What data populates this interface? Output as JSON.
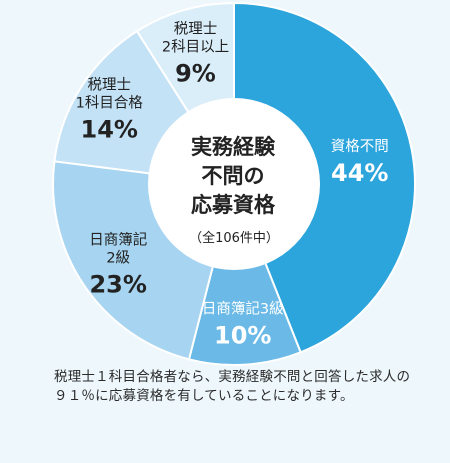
{
  "chart_data": {
    "type": "pie",
    "variant": "donut",
    "title": "実務経験不問の応募資格",
    "subtitle": "（全106件中）",
    "total": 106,
    "slices": [
      {
        "label": "資格不問",
        "value": 44,
        "value_label": "44%",
        "color": "#2ca4dc"
      },
      {
        "label": "日商簿記3級",
        "value": 10,
        "value_label": "10%",
        "color": "#6ab9e7"
      },
      {
        "label": "日商簿記2級",
        "value": 23,
        "value_label": "23%",
        "color": "#a7d4f0"
      },
      {
        "label": "税理士1科目合格",
        "value": 14,
        "value_label": "14%",
        "color": "#c3e2f5"
      },
      {
        "label": "税理士2科目以上",
        "value": 9,
        "value_label": "9%",
        "color": "#daeefa"
      }
    ],
    "display_lines": [
      [
        "資格不問"
      ],
      [
        "日商簿記3級"
      ],
      [
        "日商簿記",
        "2級"
      ],
      [
        "税理士",
        "1科目合格"
      ],
      [
        "税理士",
        "2科目以上"
      ]
    ],
    "center_lines": [
      "実務経験",
      "不問の",
      "応募資格"
    ]
  },
  "caption": "税理士１科目合格者なら、実務経験不問と回答した求人の９１％に応募資格を有していることになります。"
}
